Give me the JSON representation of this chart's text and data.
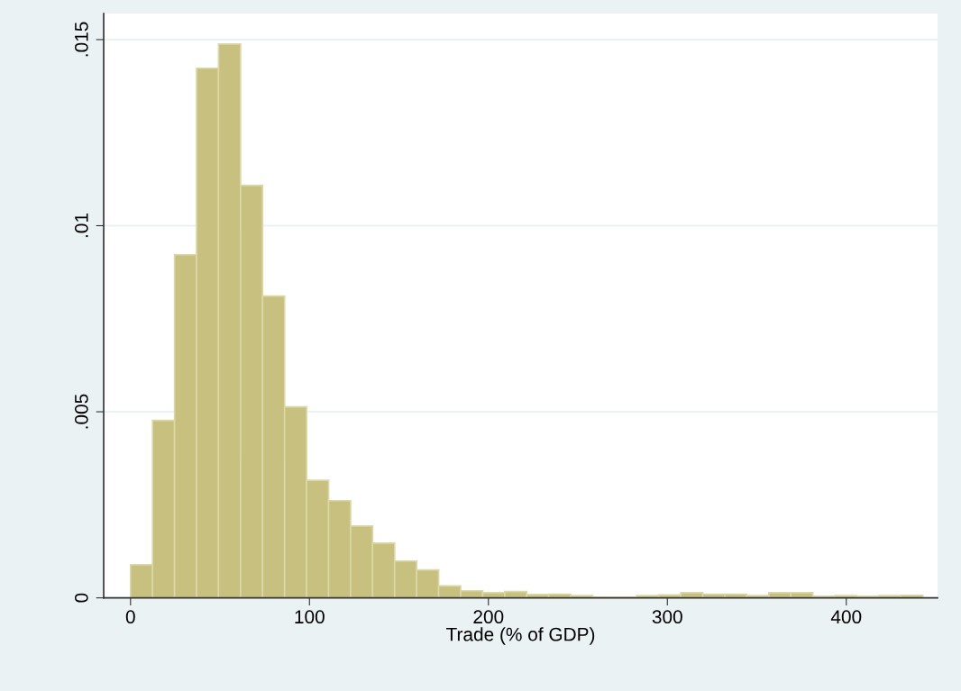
{
  "chart_data": {
    "type": "histogram",
    "xlabel": "Trade (% of GDP)",
    "bins": [
      0,
      12.3,
      24.6,
      36.9,
      49.2,
      61.5,
      73.8,
      86.1,
      98.4,
      110.7,
      123,
      135.3,
      147.6,
      159.9,
      172.2,
      184.5,
      196.8,
      209.1,
      221.4,
      233.7,
      246,
      258.3,
      270.6,
      282.9,
      295.2,
      307.5,
      319.8,
      332.1,
      344.4,
      356.7,
      369,
      381.3,
      393.6,
      405.9,
      418.2,
      430.5,
      442.8
    ],
    "values": [
      0.00089,
      0.00477,
      0.00922,
      0.01423,
      0.01488,
      0.01108,
      0.00811,
      0.00513,
      0.00316,
      0.00261,
      0.00193,
      0.00147,
      0.00099,
      0.00075,
      0.00032,
      0.00019,
      0.00014,
      0.00017,
      9e-05,
      0.0001,
      6e-05,
      2e-05,
      2e-05,
      6e-05,
      8e-05,
      0.00014,
      0.0001,
      0.0001,
      6e-05,
      0.00014,
      0.00014,
      4e-05,
      6e-05,
      4e-05,
      6e-05,
      7e-05
    ],
    "color": "#c8c07e",
    "xlim": [
      -15,
      451
    ],
    "ylim": [
      0,
      0.0157
    ],
    "xticks": [
      0,
      100,
      200,
      300,
      400
    ],
    "yticks": [
      0,
      {
        "value": 0.005,
        "label": ".005"
      },
      {
        "value": 0.01,
        "label": ".01"
      },
      {
        "value": 0.015,
        "label": ".015"
      }
    ],
    "grid": "y"
  }
}
